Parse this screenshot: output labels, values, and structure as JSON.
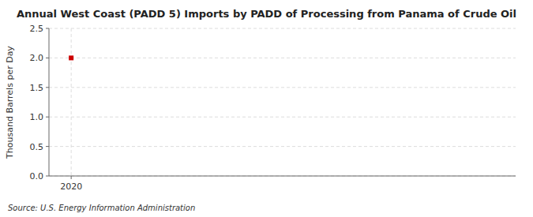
{
  "chart_data": {
    "type": "scatter",
    "title": "Annual West Coast (PADD 5) Imports by PADD of Processing from Panama of Crude Oil",
    "ylabel": "Thousand Barrels per Day",
    "source": "Source: U.S. Energy Information Administration",
    "x": [
      2020
    ],
    "values": [
      2.0
    ],
    "color": "#cc0000",
    "marker": "square",
    "xlim": [
      2019.5,
      2030.0
    ],
    "xticks": [
      2020
    ],
    "ylim": [
      0.0,
      2.5
    ],
    "yticks": [
      {
        "value": 0.0,
        "label": "0.0"
      },
      0.5,
      {
        "value": 1.0,
        "label": "1.0"
      },
      1.5,
      {
        "value": 2.0,
        "label": "2.0"
      },
      2.5
    ],
    "grid": true
  }
}
